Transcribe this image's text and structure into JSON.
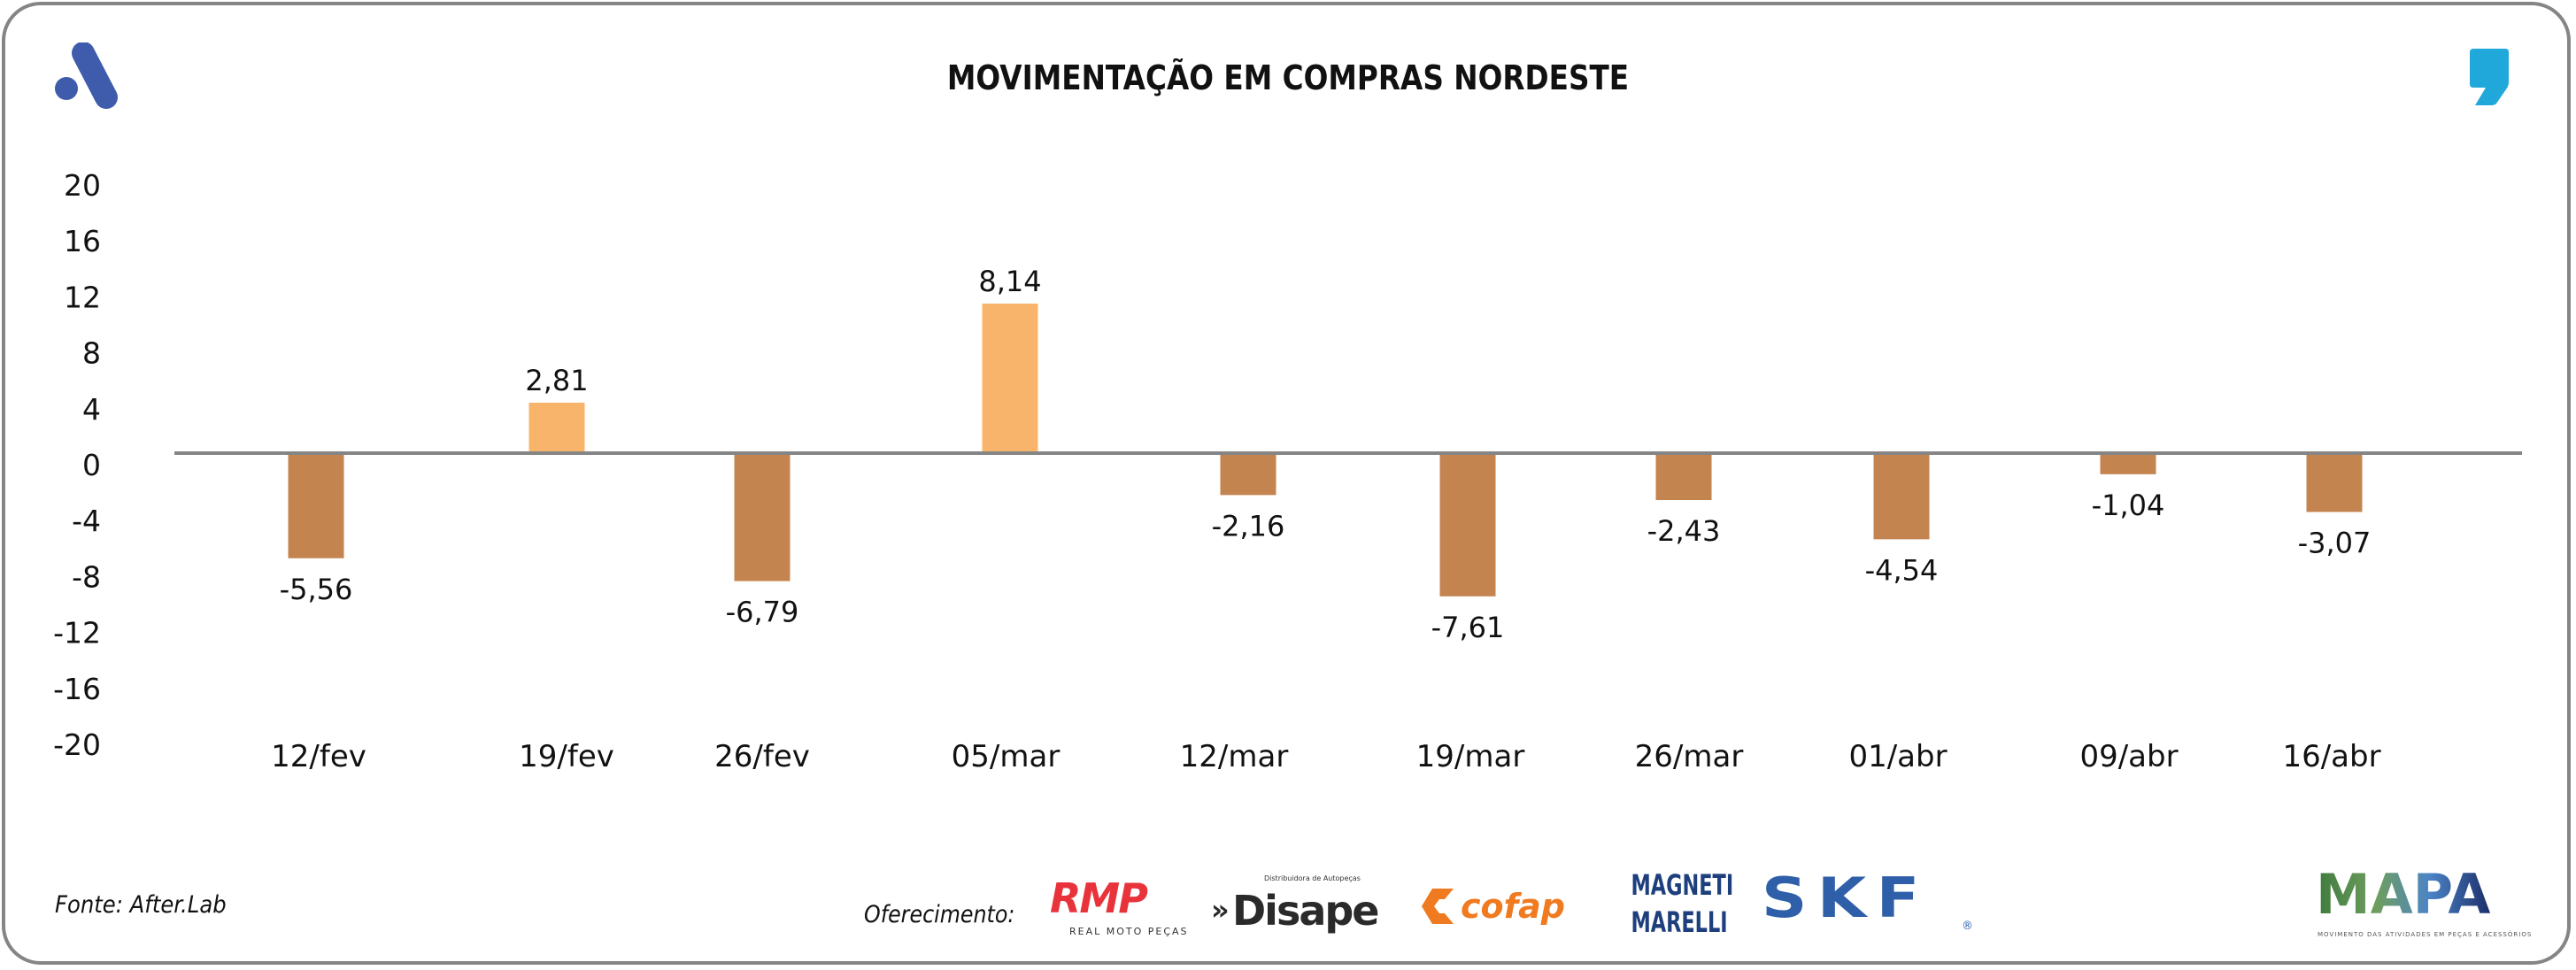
{
  "title": "MOVIMENTAÇÃO EM COMPRAS NORDESTE",
  "colors": {
    "positive_bar": "#F9B46B",
    "negative_bar": "#C38450",
    "axis_line": "#858585",
    "frame": "#858585",
    "brand_blue": "#3E5CAB",
    "brand_cyan": "#21A8DA"
  },
  "icons": {
    "top_left": "after-brand-a-icon",
    "top_right": "comma-quote-icon"
  },
  "chart_data": {
    "type": "bar",
    "title": "MOVIMENTAÇÃO EM COMPRAS NORDESTE",
    "xlabel": "",
    "ylabel": "",
    "ylim": [
      -20,
      20
    ],
    "yticks": [
      "20",
      "16",
      "12",
      "8",
      "4",
      "0",
      "-4",
      "-8",
      "-12",
      "-16",
      "-20"
    ],
    "grid": false,
    "legend": "none",
    "categories": [
      "12/fev",
      "19/fev",
      "26/fev",
      "05/mar",
      "12/mar",
      "19/mar",
      "26/mar",
      "01/abr",
      "09/abr",
      "16/abr"
    ],
    "values": [
      -5.56,
      2.81,
      -6.79,
      8.14,
      -2.16,
      -7.61,
      -2.43,
      -4.54,
      -1.04,
      -3.07
    ],
    "data_labels": [
      "-5,56",
      "2,81",
      "-6,79",
      "8,14",
      "-2,16",
      "-7,61",
      "-2,43",
      "-4,54",
      "-1,04",
      "-3,07"
    ]
  },
  "footer": {
    "source": "Fonte: After.Lab",
    "sponsor_label": "Oferecimento:",
    "sponsors": [
      {
        "name": "RMP",
        "tagline": "REAL MOTO PEÇAS"
      },
      {
        "name": "Disape",
        "tagline": "Distribuidora de Autopeças"
      },
      {
        "name": "cofap"
      },
      {
        "name": "MAGNETI",
        "name2": "MARELLI"
      },
      {
        "name": "SKF",
        "mark": "®"
      }
    ],
    "mapa": {
      "name": "MAPA",
      "tagline": "MOVIMENTO DAS ATIVIDADES EM PEÇAS E ACESSÓRIOS"
    }
  }
}
